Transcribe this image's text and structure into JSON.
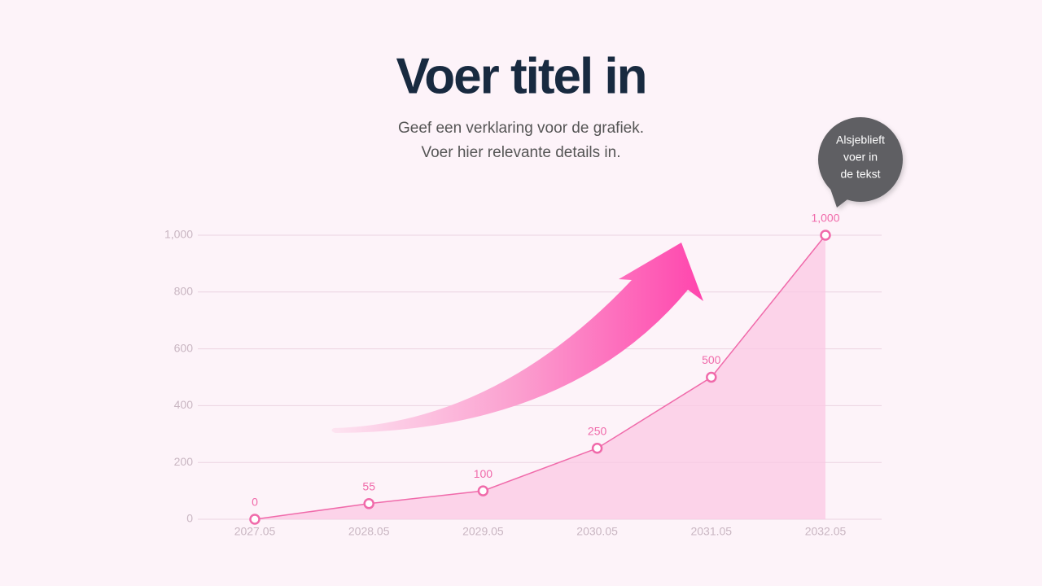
{
  "chart_data": {
    "type": "area",
    "title": "Voer titel in",
    "subtitle": [
      "Geef een verklaring voor de grafiek.",
      "Voer hier relevante details in."
    ],
    "annotation": [
      "Alsjeblieft",
      "voer in",
      "de tekst"
    ],
    "categories": [
      "2027.05",
      "2028.05",
      "2029.05",
      "2030.05",
      "2031.05",
      "2032.05"
    ],
    "values": [
      0,
      55,
      100,
      250,
      500,
      1000
    ],
    "value_labels": [
      "0",
      "55",
      "100",
      "250",
      "500",
      "1,000"
    ],
    "color": "#f06aaa",
    "ylim": [
      0,
      1000
    ],
    "yticks": [
      0,
      200,
      400,
      600,
      800,
      {
        "value": 1000,
        "label": "1,000"
      }
    ],
    "grid": true
  }
}
